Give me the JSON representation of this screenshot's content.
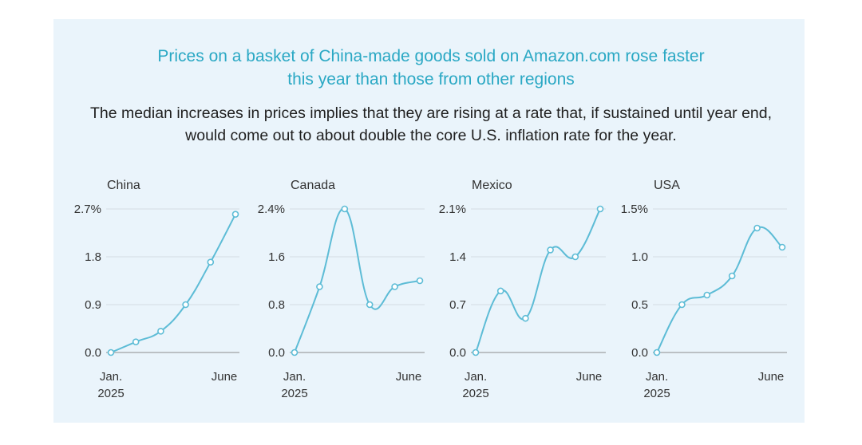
{
  "title_lines": [
    "Prices on a basket of China-made goods sold on Amazon.com rose faster",
    "this year than those from other regions"
  ],
  "subtitle_lines": [
    "The median increases in prices implies that they are rising at a rate that, if sustained until year end,",
    "would come out to about double the core U.S. inflation rate for the year."
  ],
  "colors": {
    "background": "#eaf4fb",
    "line": "#5dbcd6",
    "title": "#2aa8c4"
  },
  "chart_data": [
    {
      "type": "line",
      "title": "China",
      "x_tick_labels": [
        [
          "Jan.",
          "2025"
        ],
        [
          "June"
        ]
      ],
      "y_ticks": [
        "0.0",
        "0.9",
        "1.8",
        "2.7%"
      ],
      "ylim": [
        0,
        2.7
      ],
      "x": [
        0,
        1,
        2,
        3,
        4,
        5
      ],
      "values": [
        0.0,
        0.2,
        0.4,
        0.9,
        1.7,
        2.6
      ]
    },
    {
      "type": "line",
      "title": "Canada",
      "x_tick_labels": [
        [
          "Jan.",
          "2025"
        ],
        [
          "June"
        ]
      ],
      "y_ticks": [
        "0.0",
        "0.8",
        "1.6",
        "2.4%"
      ],
      "ylim": [
        0,
        2.4
      ],
      "x": [
        0,
        1,
        2,
        3,
        4,
        5
      ],
      "values": [
        0.0,
        1.1,
        2.4,
        0.8,
        1.1,
        1.2
      ]
    },
    {
      "type": "line",
      "title": "Mexico",
      "x_tick_labels": [
        [
          "Jan.",
          "2025"
        ],
        [
          "June"
        ]
      ],
      "y_ticks": [
        "0.0",
        "0.7",
        "1.4",
        "2.1%"
      ],
      "ylim": [
        0,
        2.1
      ],
      "x": [
        0,
        1,
        2,
        3,
        4,
        5
      ],
      "values": [
        0.0,
        0.9,
        0.5,
        1.5,
        1.4,
        2.1
      ]
    },
    {
      "type": "line",
      "title": "USA",
      "x_tick_labels": [
        [
          "Jan.",
          "2025"
        ],
        [
          "June"
        ]
      ],
      "y_ticks": [
        "0.0",
        "0.5",
        "1.0",
        "1.5%"
      ],
      "ylim": [
        0,
        1.5
      ],
      "x": [
        0,
        1,
        2,
        3,
        4,
        5
      ],
      "values": [
        0.0,
        0.5,
        0.6,
        0.8,
        1.3,
        1.1
      ]
    }
  ]
}
